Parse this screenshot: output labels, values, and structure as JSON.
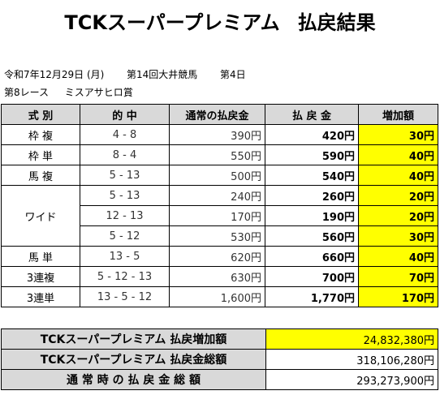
{
  "title": {
    "main": "TCKスーパープレミアム",
    "sub": "払戻結果"
  },
  "race_info": {
    "date": "令和7年12月29日 (月)",
    "meeting": "第14回大井競馬",
    "day": "第4日",
    "race": "第8レース",
    "race_name": "ミスアサヒロ賞"
  },
  "table": {
    "headers": {
      "type": "式 別",
      "combination": "的 中",
      "normal": "通常の払戻金",
      "payout": "払 戻 金",
      "increase": "増加額"
    },
    "rows": [
      {
        "type": "枠 複",
        "combination": "4 - 8",
        "normal": "390円",
        "payout": "420円",
        "increase": "30円"
      },
      {
        "type": "枠 単",
        "combination": "8 - 4",
        "normal": "550円",
        "payout": "590円",
        "increase": "40円"
      },
      {
        "type": "馬 複",
        "combination": "5 - 13",
        "normal": "500円",
        "payout": "540円",
        "increase": "40円"
      },
      {
        "type": "ワイド",
        "combination": "5 - 13",
        "normal": "240円",
        "payout": "260円",
        "increase": "20円"
      },
      {
        "type": "",
        "combination": "12 - 13",
        "normal": "170円",
        "payout": "190円",
        "increase": "20円"
      },
      {
        "type": "",
        "combination": "5 - 12",
        "normal": "530円",
        "payout": "560円",
        "increase": "30円"
      },
      {
        "type": "馬 単",
        "combination": "13 - 5",
        "normal": "620円",
        "payout": "660円",
        "increase": "40円"
      },
      {
        "type": "3連複",
        "combination": "5 - 12 - 13",
        "normal": "630円",
        "payout": "700円",
        "increase": "70円"
      },
      {
        "type": "3連単",
        "combination": "13 - 5 - 12",
        "normal": "1,600円",
        "payout": "1,770円",
        "increase": "170円"
      }
    ]
  },
  "summary": {
    "increase_label": "TCKスーパープレミアム 払戻増加額",
    "increase_value": "24,832,380円",
    "total_label": "TCKスーパープレミアム 払戻金総額",
    "total_value": "318,106,280円",
    "normal_label": "通 常 時 の 払 戻 金 総 額",
    "normal_value": "293,273,900円"
  },
  "colors": {
    "header_bg": "#d9d9d9",
    "highlight": "#ffff00",
    "border": "#000000"
  }
}
